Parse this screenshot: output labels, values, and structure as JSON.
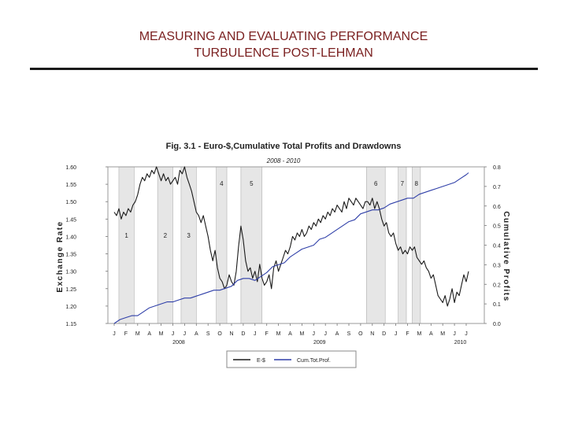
{
  "slide": {
    "title_line1": "MEASURING AND EVALUATING PERFORMANCE",
    "title_line2": "TURBULENCE POST-LEHMAN"
  },
  "chart_data": {
    "type": "line",
    "title": "Fig. 3.1 - Euro-$,Cumulative Total Profits and Drawdowns",
    "subtitle": "2008 - 2010",
    "ylabel_left": "Exchange Rate",
    "ylabel_right": "Cumulative Profits",
    "ylim_left": [
      1.15,
      1.6
    ],
    "ylim_right": [
      0.0,
      0.8
    ],
    "left_ticks": [
      "1.60",
      "1.55",
      "1.50",
      "1.45",
      "1.40",
      "1.35",
      "1.30",
      "1.25",
      "1.20",
      "1.15"
    ],
    "right_ticks": [
      "0.8",
      "0.7",
      "0.6",
      "0.5",
      "0.4",
      "0.3",
      "0.2",
      "0.1",
      "0.0"
    ],
    "month_ticks": [
      "J",
      "F",
      "M",
      "A",
      "M",
      "J",
      "J",
      "A",
      "S",
      "O",
      "N",
      "D",
      "J",
      "F",
      "M",
      "A",
      "M",
      "J",
      "J",
      "A",
      "S",
      "O",
      "N",
      "D",
      "J",
      "F",
      "M",
      "A",
      "M",
      "J",
      "J"
    ],
    "year_labels": [
      {
        "label": "2008",
        "month_index": 5.5
      },
      {
        "label": "2009",
        "month_index": 17.5
      },
      {
        "label": "2010",
        "month_index": 29.5
      }
    ],
    "drawdowns": [
      {
        "label": "1",
        "start": 0.4,
        "end": 1.7
      },
      {
        "label": "2",
        "start": 3.7,
        "end": 5.0
      },
      {
        "label": "3",
        "start": 5.7,
        "end": 7.0
      },
      {
        "label": "4",
        "start": 8.7,
        "end": 9.6
      },
      {
        "label": "5",
        "start": 10.8,
        "end": 12.6
      },
      {
        "label": "6",
        "start": 21.5,
        "end": 23.1
      },
      {
        "label": "7",
        "start": 24.2,
        "end": 24.9
      },
      {
        "label": "8",
        "start": 25.4,
        "end": 26.1
      }
    ],
    "series": [
      {
        "name": "E-$",
        "axis": "left",
        "color": "#1a1a1a",
        "x": [
          0,
          0.2,
          0.4,
          0.6,
          0.8,
          1.0,
          1.2,
          1.4,
          1.6,
          1.8,
          2.0,
          2.2,
          2.4,
          2.6,
          2.8,
          3.0,
          3.2,
          3.4,
          3.6,
          3.8,
          4.0,
          4.2,
          4.4,
          4.6,
          4.8,
          5.0,
          5.2,
          5.4,
          5.6,
          5.8,
          6.0,
          6.2,
          6.4,
          6.6,
          6.8,
          7.0,
          7.2,
          7.4,
          7.6,
          7.8,
          8.0,
          8.2,
          8.4,
          8.6,
          8.8,
          9.0,
          9.2,
          9.4,
          9.6,
          9.8,
          10.0,
          10.2,
          10.4,
          10.6,
          10.8,
          11.0,
          11.2,
          11.4,
          11.6,
          11.8,
          12.0,
          12.2,
          12.4,
          12.6,
          12.8,
          13.0,
          13.2,
          13.4,
          13.6,
          13.8,
          14.0,
          14.2,
          14.4,
          14.6,
          14.8,
          15.0,
          15.2,
          15.4,
          15.6,
          15.8,
          16.0,
          16.2,
          16.4,
          16.6,
          16.8,
          17.0,
          17.2,
          17.4,
          17.6,
          17.8,
          18.0,
          18.2,
          18.4,
          18.6,
          18.8,
          19.0,
          19.2,
          19.4,
          19.6,
          19.8,
          20.0,
          20.2,
          20.4,
          20.6,
          20.8,
          21.0,
          21.2,
          21.4,
          21.6,
          21.8,
          22.0,
          22.2,
          22.4,
          22.6,
          22.8,
          23.0,
          23.2,
          23.4,
          23.6,
          23.8,
          24.0,
          24.2,
          24.4,
          24.6,
          24.8,
          25.0,
          25.2,
          25.4,
          25.6,
          25.8,
          26.0,
          26.2,
          26.4,
          26.6,
          26.8,
          27.0,
          27.2,
          27.4,
          27.6,
          27.8,
          28.0,
          28.2,
          28.4,
          28.6,
          28.8,
          29.0,
          29.2,
          29.4,
          29.6,
          29.8,
          30.0,
          30.2
        ],
        "y": [
          1.47,
          1.46,
          1.48,
          1.45,
          1.47,
          1.46,
          1.48,
          1.47,
          1.49,
          1.5,
          1.52,
          1.55,
          1.57,
          1.56,
          1.58,
          1.57,
          1.59,
          1.58,
          1.6,
          1.58,
          1.56,
          1.58,
          1.56,
          1.57,
          1.55,
          1.56,
          1.57,
          1.55,
          1.59,
          1.58,
          1.6,
          1.57,
          1.55,
          1.53,
          1.5,
          1.47,
          1.46,
          1.44,
          1.46,
          1.43,
          1.4,
          1.36,
          1.33,
          1.36,
          1.31,
          1.28,
          1.27,
          1.25,
          1.26,
          1.29,
          1.27,
          1.26,
          1.3,
          1.37,
          1.43,
          1.39,
          1.33,
          1.3,
          1.31,
          1.28,
          1.3,
          1.27,
          1.32,
          1.28,
          1.26,
          1.27,
          1.29,
          1.25,
          1.31,
          1.33,
          1.3,
          1.32,
          1.34,
          1.36,
          1.35,
          1.37,
          1.4,
          1.39,
          1.41,
          1.4,
          1.42,
          1.4,
          1.41,
          1.43,
          1.42,
          1.44,
          1.43,
          1.45,
          1.44,
          1.46,
          1.45,
          1.47,
          1.46,
          1.48,
          1.47,
          1.49,
          1.48,
          1.47,
          1.5,
          1.48,
          1.51,
          1.5,
          1.49,
          1.51,
          1.5,
          1.49,
          1.48,
          1.5,
          1.5,
          1.49,
          1.51,
          1.48,
          1.5,
          1.48,
          1.45,
          1.43,
          1.44,
          1.41,
          1.4,
          1.41,
          1.38,
          1.36,
          1.37,
          1.35,
          1.36,
          1.35,
          1.37,
          1.36,
          1.37,
          1.34,
          1.33,
          1.32,
          1.33,
          1.31,
          1.3,
          1.28,
          1.29,
          1.26,
          1.23,
          1.22,
          1.21,
          1.23,
          1.2,
          1.22,
          1.25,
          1.21,
          1.24,
          1.23,
          1.26,
          1.29,
          1.27,
          1.3
        ]
      },
      {
        "name": "Cum.Tot.Prof.",
        "axis": "right",
        "color": "#2f3fa8",
        "x": [
          0,
          0.5,
          1.0,
          1.5,
          2.0,
          2.5,
          3.0,
          3.5,
          4.0,
          4.5,
          5.0,
          5.5,
          6.0,
          6.5,
          7.0,
          7.5,
          8.0,
          8.5,
          9.0,
          9.5,
          10.0,
          10.5,
          11.0,
          11.5,
          12.0,
          12.5,
          13.0,
          13.5,
          14.0,
          14.5,
          15.0,
          15.5,
          16.0,
          16.5,
          17.0,
          17.5,
          18.0,
          18.5,
          19.0,
          19.5,
          20.0,
          20.5,
          21.0,
          21.5,
          22.0,
          22.5,
          23.0,
          23.5,
          24.0,
          24.5,
          25.0,
          25.5,
          26.0,
          26.5,
          27.0,
          27.5,
          28.0,
          28.5,
          29.0,
          29.5,
          30.0,
          30.2
        ],
        "y": [
          0.0,
          0.02,
          0.03,
          0.04,
          0.04,
          0.06,
          0.08,
          0.09,
          0.1,
          0.11,
          0.11,
          0.12,
          0.13,
          0.13,
          0.14,
          0.15,
          0.16,
          0.17,
          0.17,
          0.18,
          0.19,
          0.22,
          0.23,
          0.23,
          0.22,
          0.24,
          0.26,
          0.29,
          0.3,
          0.31,
          0.34,
          0.36,
          0.38,
          0.39,
          0.4,
          0.43,
          0.44,
          0.46,
          0.48,
          0.5,
          0.52,
          0.53,
          0.56,
          0.57,
          0.58,
          0.58,
          0.59,
          0.61,
          0.62,
          0.63,
          0.64,
          0.64,
          0.66,
          0.67,
          0.68,
          0.69,
          0.7,
          0.71,
          0.72,
          0.74,
          0.76,
          0.77
        ]
      }
    ],
    "legend": {
      "placement": "bottom-center",
      "entries": [
        "E-$",
        "Cum.Tot.Prof."
      ]
    }
  }
}
